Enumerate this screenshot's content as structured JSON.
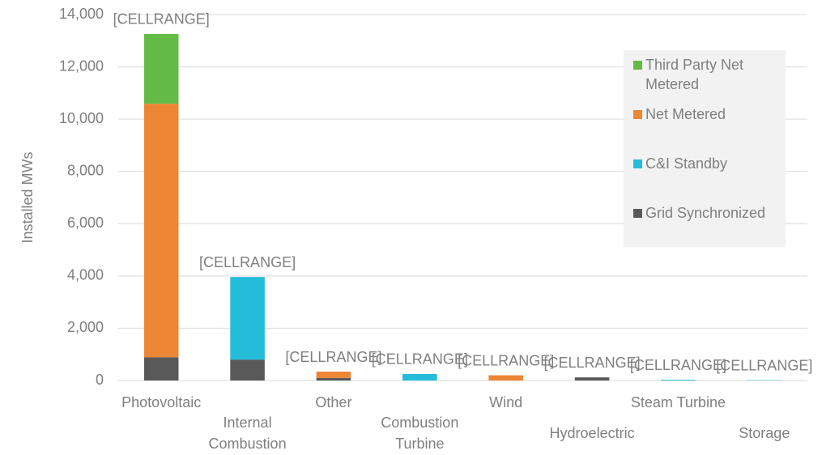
{
  "chart_data": {
    "type": "stacked_bar",
    "y_label": "Installed MWs",
    "categories": [
      "Photovoltaic",
      "Internal Combustion",
      "Other",
      "Combustion Turbine",
      "Wind",
      "Hydroelectric",
      "Steam Turbine",
      "Storage"
    ],
    "series": [
      {
        "name": "Grid Synchronized",
        "color": "#595959",
        "values": [
          890,
          800,
          100,
          0,
          0,
          120,
          0,
          0
        ]
      },
      {
        "name": "C&I Standby",
        "color": "#25bcd9",
        "values": [
          0,
          3160,
          0,
          250,
          0,
          0,
          30,
          15
        ]
      },
      {
        "name": "Net Metered",
        "color": "#ed8634",
        "values": [
          9700,
          0,
          240,
          0,
          200,
          0,
          0,
          0
        ]
      },
      {
        "name": "Third Party Net Metered",
        "color": "#63bb45",
        "values": [
          2670,
          0,
          0,
          0,
          0,
          0,
          0,
          0
        ]
      }
    ],
    "data_labels": [
      "[CELLRANGE]",
      "[CELLRANGE]",
      "[CELLRANGE]",
      "[CELLRANGE]",
      "[CELLRANGE]",
      "[CELLRANGE]",
      "[CELLRANGE]",
      "[CELLRANGE]"
    ],
    "ylim": [
      0,
      14000
    ],
    "yticks": [
      0,
      {
        "value": 2000,
        "label": "2,000"
      },
      {
        "value": 4000,
        "label": "4,000"
      },
      {
        "value": 6000,
        "label": "6,000"
      },
      {
        "value": 8000,
        "label": "8,000"
      },
      {
        "value": 10000,
        "label": "10,000"
      },
      {
        "value": 12000,
        "label": "12,000"
      },
      {
        "value": 14000,
        "label": "14,000"
      }
    ],
    "grid": true
  }
}
